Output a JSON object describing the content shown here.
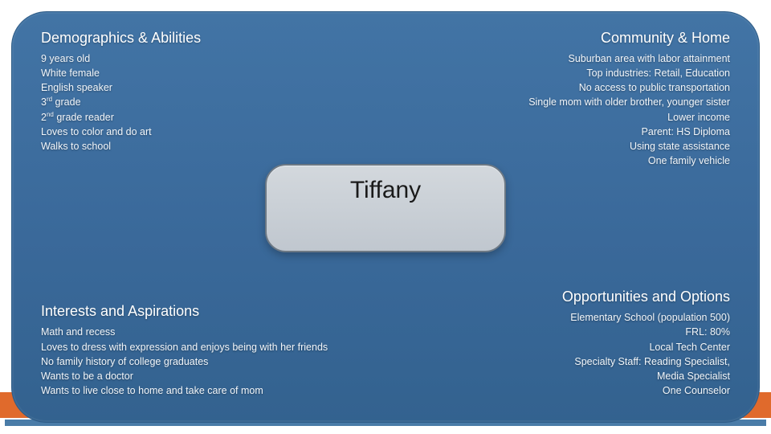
{
  "persona_name": "Tiffany",
  "colors": {
    "panel_top": "#4274a5",
    "panel_bottom": "#33628f",
    "orange": "#e06a2c",
    "pill_top": "#d3d8dd",
    "pill_bottom": "#c0c7cf",
    "pill_border": "#6c7884",
    "text": "#ffffff",
    "name_text": "#1a1a1a"
  },
  "quadrants": {
    "top_left": {
      "heading": "Demographics & Abilities",
      "items": [
        "9 years old",
        "White female",
        "English speaker",
        "3rd grade",
        "2nd grade reader",
        "Loves to color and do art",
        "Walks to school"
      ]
    },
    "top_right": {
      "heading": "Community & Home",
      "items": [
        "Suburban area with labor attainment",
        "Top industries: Retail, Education",
        "No access to public transportation",
        "Single mom with older brother, younger sister",
        "Lower income",
        "Parent: HS Diploma",
        "Using state assistance",
        "One family vehicle"
      ]
    },
    "bottom_left": {
      "heading": "Interests and Aspirations",
      "items": [
        "Math and recess",
        "Loves to dress with expression and enjoys being with her friends",
        "No family history of college graduates",
        "Wants to be a doctor",
        "Wants to live close to home and take care of mom"
      ]
    },
    "bottom_right": {
      "heading": "Opportunities and Options",
      "items": [
        "Elementary School (population 500)",
        "FRL: 80%",
        "Local Tech Center",
        "Specialty Staff: Reading Specialist,",
        "Media Specialist",
        "One Counselor"
      ]
    }
  }
}
